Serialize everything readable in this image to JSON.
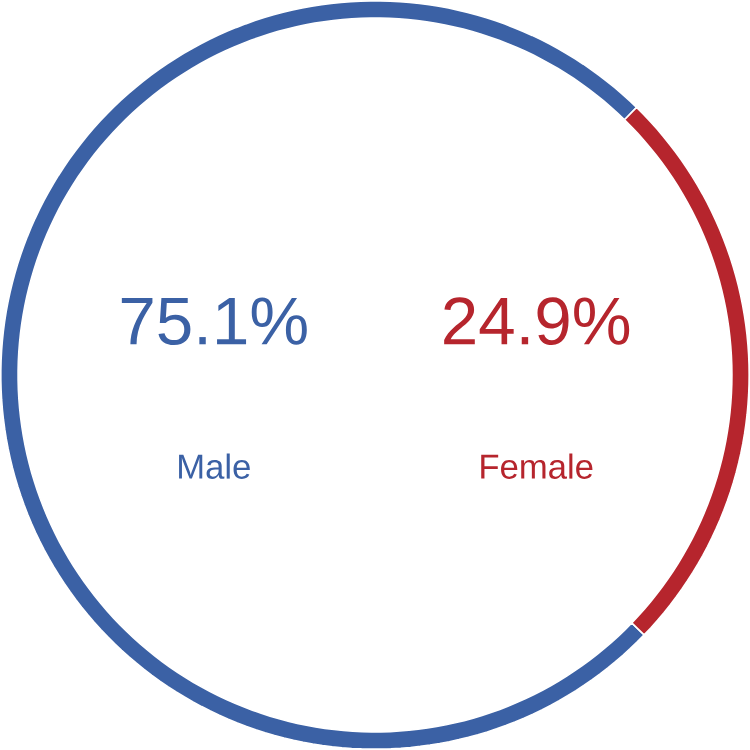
{
  "chart_data": {
    "type": "donut",
    "categories": [
      "Male",
      "Female"
    ],
    "values": [
      75.1,
      24.9
    ],
    "value_labels": [
      "75.1%",
      "24.9%"
    ],
    "colors": [
      "#3b61a5",
      "#b6252d"
    ]
  }
}
